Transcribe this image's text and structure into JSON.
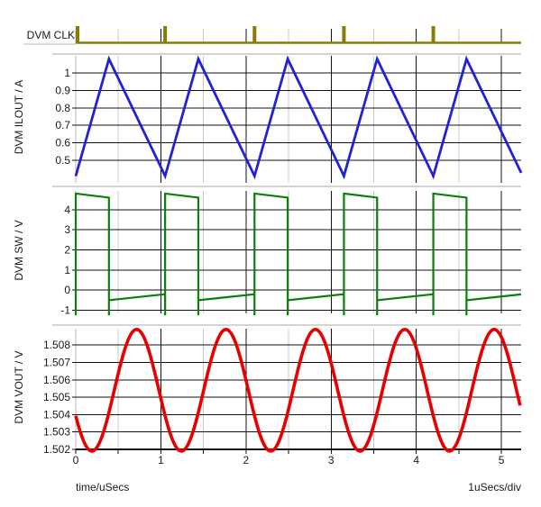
{
  "window": {
    "background": "#ffffff"
  },
  "axis": {
    "xlabel": "time/uSecs",
    "div_label": "1uSecs/div",
    "xticks": [
      0,
      1,
      2,
      3,
      4,
      5
    ],
    "minor_xticks": [
      0.5,
      1.5,
      2.5,
      3.5,
      4.5
    ],
    "xmin": 0,
    "xmax": 5.232,
    "grid_color": "#111111",
    "minor_grid_color": "#c8c8c8",
    "separator_color": "#a9a9a9",
    "axis_line_color": "#b8b8b8",
    "text_color": "#1a1a1a"
  },
  "chart_data": [
    {
      "type": "digital",
      "label": "DVM CLK",
      "color": "#867e00",
      "pulse_times": [
        0,
        1.05,
        2.1,
        3.15,
        4.2
      ],
      "period": 1.05,
      "low_level": 0,
      "high_level": 1
    },
    {
      "type": "line",
      "shape": "triangle",
      "label": "DVM ILOUT / A",
      "color": "#2121d8",
      "yticks": [
        1,
        0.9,
        0.8,
        0.7,
        0.6,
        0.5
      ],
      "min": 0.41,
      "max": 1.08,
      "period": 1.05,
      "rise_time": 0.39
    },
    {
      "type": "line",
      "shape": "pulse",
      "label": "DVM SW / V",
      "color": "#0b7e0b",
      "yticks": [
        4,
        3,
        2,
        1,
        0,
        -1
      ],
      "high_start": 4.8,
      "high_end": 4.6,
      "low_start": -0.5,
      "low_end": -0.2,
      "edge_spike": -1.25,
      "period": 1.05,
      "on_time": 0.39
    },
    {
      "type": "line",
      "shape": "sine",
      "label": "DVM VOUT / V",
      "color": "#e80000",
      "yticks": [
        1.508,
        1.507,
        1.506,
        1.505,
        1.504,
        1.503,
        1.502
      ],
      "min": 1.5019,
      "max": 1.5089,
      "period": 1.05,
      "t_first_min": 0.19
    }
  ]
}
